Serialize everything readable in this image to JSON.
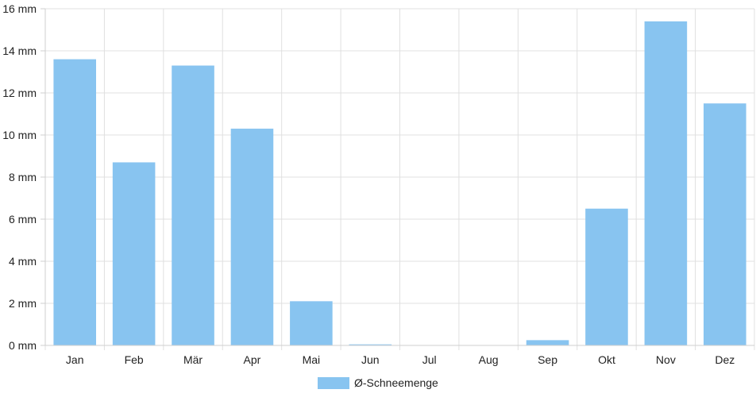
{
  "chart_data": {
    "type": "bar",
    "categories": [
      "Jan",
      "Feb",
      "Mär",
      "Apr",
      "Mai",
      "Jun",
      "Jul",
      "Aug",
      "Sep",
      "Okt",
      "Nov",
      "Dez"
    ],
    "series": [
      {
        "name": "Ø-Schneemenge",
        "values": [
          13.6,
          8.7,
          13.3,
          10.3,
          2.1,
          0.05,
          0,
          0,
          0.25,
          6.5,
          15.4,
          11.5
        ],
        "color": "#88c4f0"
      }
    ],
    "yticks": [
      "0 mm",
      "2 mm",
      "4 mm",
      "6 mm",
      "8 mm",
      "10 mm",
      "12 mm",
      "14 mm",
      "16 mm"
    ],
    "ylim": [
      0,
      16
    ],
    "grid": true,
    "legend_position": "bottom-center"
  }
}
